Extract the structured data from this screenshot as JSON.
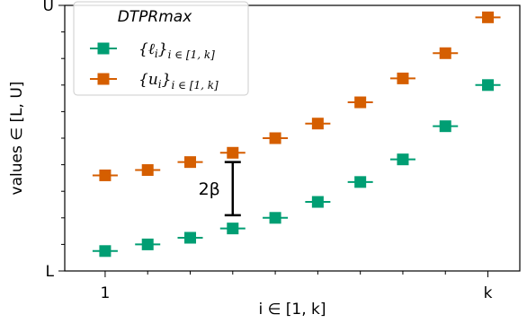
{
  "chart_data": {
    "type": "scatter",
    "xlabel": "i ∈ [1, k]",
    "ylabel": "values  ∈ [L, U]",
    "x_tick_labels": [
      {
        "x": 1,
        "label": "1"
      },
      {
        "x": 10,
        "label": "k"
      }
    ],
    "y_tick_labels": [
      {
        "y": 0,
        "label": "L"
      },
      {
        "y": 1,
        "label": "U"
      }
    ],
    "xlim": [
      0.05,
      10.75
    ],
    "ylim": [
      0,
      1
    ],
    "x": [
      1,
      2,
      3,
      4,
      5,
      6,
      7,
      8,
      9,
      10
    ],
    "series": [
      {
        "name": "{ℓi}i∈[1,k]",
        "color": "#009e73",
        "marker": "square",
        "values": [
          0.075,
          0.1,
          0.125,
          0.16,
          0.2,
          0.26,
          0.335,
          0.42,
          0.545,
          0.7
        ]
      },
      {
        "name": "{ui}i∈[1,k]",
        "color": "#d55e00",
        "marker": "square",
        "values": [
          0.36,
          0.38,
          0.41,
          0.445,
          0.5,
          0.555,
          0.635,
          0.725,
          0.82,
          0.955
        ]
      }
    ],
    "legend": {
      "title": "DTPRmax",
      "placement": "top-left",
      "entries": [
        {
          "main": "{ℓ",
          "sub_i": "i",
          "close": "}",
          "subscript": "i ∈ [1, k]",
          "color": "#009e73"
        },
        {
          "main": "{u",
          "sub_i": "i",
          "close": "}",
          "subscript": "i ∈ [1, k]",
          "color": "#d55e00"
        }
      ]
    },
    "annotation": {
      "label": "2β",
      "x": 4,
      "y_low": 0.21,
      "y_high": 0.41
    },
    "grid": false
  }
}
